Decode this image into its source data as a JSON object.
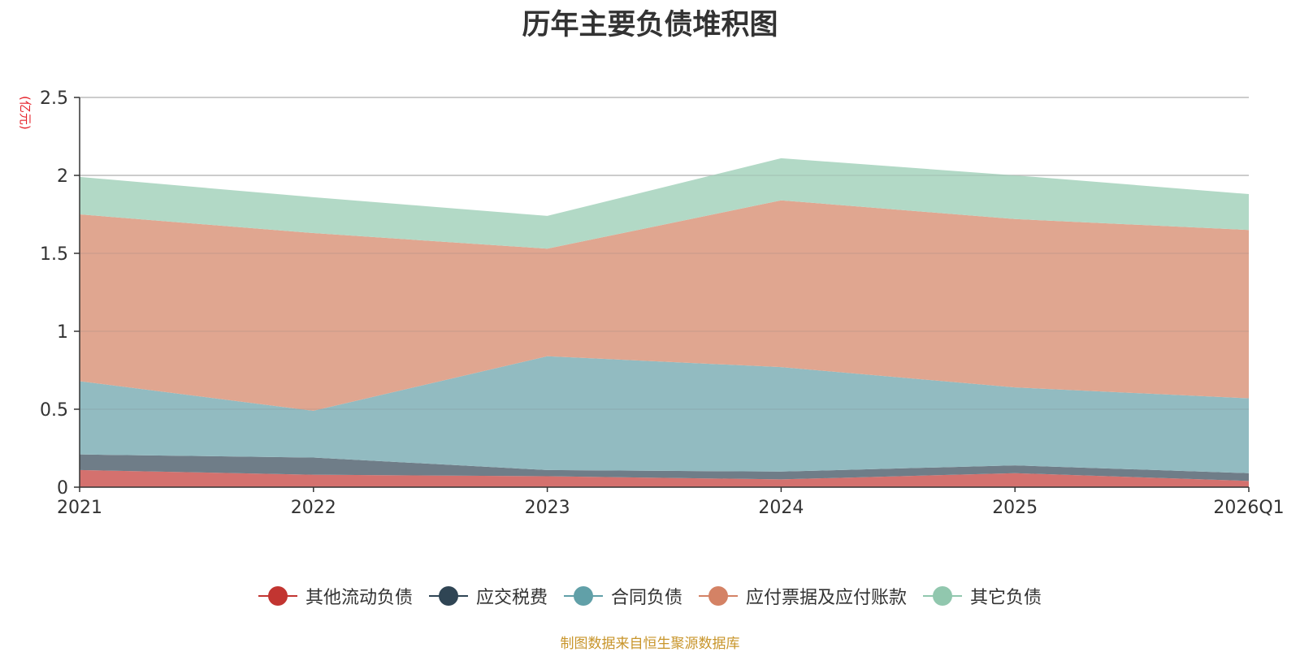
{
  "chart_data": {
    "type": "area",
    "stacked": true,
    "title": "历年主要负债堆积图",
    "ylabel": "(亿元)",
    "xlabel": "",
    "categories": [
      "2021",
      "2022",
      "2023",
      "2024",
      "2025",
      "2026Q1"
    ],
    "ylim": [
      0,
      2.5
    ],
    "yticks": [
      "0",
      "0.5",
      "1",
      "1.5",
      "2",
      "2.5"
    ],
    "series": [
      {
        "name": "其他流动负债",
        "values": [
          0.11,
          0.08,
          0.07,
          0.05,
          0.09,
          0.04
        ],
        "color": "#c23531",
        "fill": "#d4716e"
      },
      {
        "name": "应交税费",
        "values": [
          0.1,
          0.11,
          0.04,
          0.05,
          0.05,
          0.05
        ],
        "color": "#2f4554",
        "fill": "#6f7d88"
      },
      {
        "name": "合同负债",
        "values": [
          0.47,
          0.3,
          0.73,
          0.67,
          0.5,
          0.48
        ],
        "color": "#61a0a8",
        "fill": "#92bbc1"
      },
      {
        "name": "应付票据及应付账款",
        "values": [
          1.07,
          1.14,
          0.69,
          1.07,
          1.08,
          1.08
        ],
        "color": "#d48265",
        "fill": "#e0a690"
      },
      {
        "name": "其它负债",
        "values": [
          0.24,
          0.23,
          0.21,
          0.27,
          0.28,
          0.23
        ],
        "color": "#91c7ae",
        "fill": "#b2d9c6"
      }
    ],
    "grid": true,
    "legend_position": "bottom"
  },
  "source_note": "制图数据来自恒生聚源数据库"
}
